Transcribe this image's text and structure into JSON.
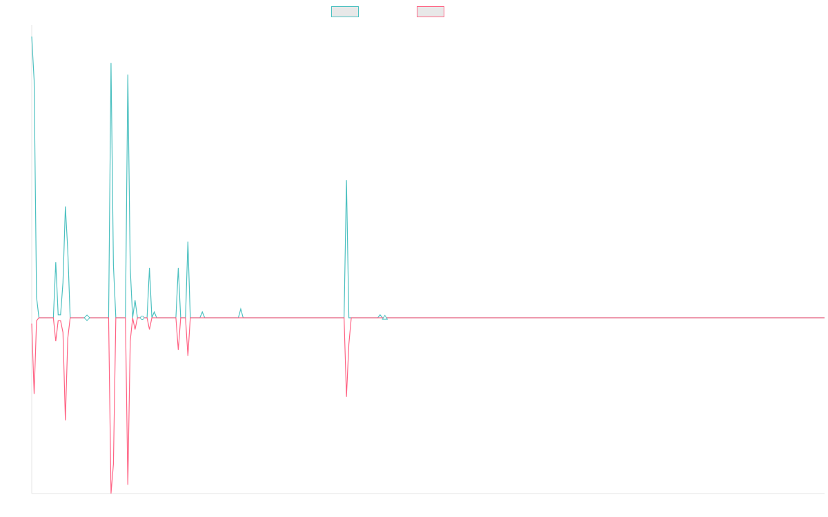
{
  "chart_data": {
    "type": "line",
    "title": "",
    "xlabel": "",
    "ylabel": "",
    "legend_position": "top-center",
    "grid": false,
    "series": [
      {
        "color": "#4bc0c0",
        "fill": "#e8e8e8",
        "values": [
          0.96,
          0.81,
          0.07,
          0,
          0,
          0,
          0,
          0,
          0,
          0,
          0.19,
          0.01,
          0.01,
          0.12,
          0.38,
          0.23,
          0,
          0,
          0,
          0,
          0,
          0,
          0,
          0,
          0,
          0,
          0,
          0,
          0,
          0,
          0,
          0,
          0,
          0.87,
          0.18,
          0,
          0,
          0,
          0,
          0,
          0.83,
          0.17,
          0,
          0.06,
          0,
          0,
          0,
          0,
          0,
          0.17,
          0,
          0.02,
          0,
          0,
          0,
          0,
          0,
          0,
          0,
          0,
          0,
          0.17,
          0,
          0,
          0,
          0.26,
          0,
          0,
          0,
          0,
          0,
          0.02,
          0,
          0,
          0,
          0,
          0,
          0,
          0,
          0,
          0,
          0,
          0,
          0,
          0,
          0,
          0,
          0.03,
          0,
          0,
          0,
          0,
          0,
          0,
          0,
          0,
          0,
          0,
          0,
          0,
          0,
          0,
          0,
          0,
          0,
          0,
          0,
          0,
          0,
          0,
          0,
          0,
          0,
          0,
          0,
          0,
          0,
          0,
          0,
          0,
          0,
          0,
          0,
          0,
          0,
          0,
          0,
          0,
          0,
          0,
          0,
          0.47,
          0,
          0,
          0,
          0,
          0,
          0,
          0,
          0,
          0,
          0,
          0,
          0,
          0,
          0.01,
          0,
          0,
          0,
          0,
          0,
          0,
          0,
          0,
          0,
          0,
          0,
          0,
          0,
          0,
          0,
          0,
          0,
          0,
          0,
          0,
          0,
          0,
          0,
          0,
          0,
          0,
          0,
          0,
          0,
          0,
          0,
          0,
          0,
          0,
          0,
          0,
          0,
          0,
          0,
          0,
          0,
          0,
          0,
          0,
          0,
          0,
          0,
          0,
          0,
          0,
          0,
          0,
          0,
          0,
          0,
          0,
          0,
          0,
          0,
          0,
          0,
          0,
          0,
          0,
          0,
          0,
          0,
          0,
          0,
          0,
          0,
          0,
          0,
          0,
          0,
          0,
          0,
          0,
          0,
          0,
          0,
          0,
          0,
          0,
          0,
          0,
          0,
          0,
          0,
          0,
          0,
          0,
          0,
          0,
          0,
          0,
          0,
          0,
          0,
          0,
          0,
          0,
          0,
          0,
          0,
          0,
          0,
          0,
          0,
          0,
          0,
          0,
          0,
          0,
          0,
          0,
          0,
          0,
          0,
          0,
          0,
          0,
          0,
          0,
          0,
          0,
          0,
          0,
          0,
          0,
          0,
          0,
          0,
          0,
          0,
          0,
          0,
          0,
          0,
          0,
          0,
          0,
          0,
          0,
          0,
          0,
          0,
          0,
          0,
          0,
          0,
          0,
          0,
          0,
          0,
          0,
          0,
          0,
          0,
          0,
          0,
          0,
          0,
          0,
          0,
          0,
          0,
          0,
          0,
          0,
          0,
          0,
          0,
          0,
          0,
          0,
          0,
          0,
          0,
          0,
          0,
          0,
          0,
          0,
          0
        ]
      },
      {
        "color": "#ff6384",
        "fill": "#e8e8e8",
        "values": [
          -0.02,
          -0.26,
          -0.01,
          0,
          0,
          0,
          0,
          0,
          0,
          0,
          -0.08,
          -0.01,
          -0.01,
          -0.05,
          -0.35,
          -0.07,
          0,
          0,
          0,
          0,
          0,
          0,
          0,
          0,
          0,
          0,
          0,
          0,
          0,
          0,
          0,
          0,
          0,
          -0.6,
          -0.5,
          0,
          0,
          0,
          0,
          0,
          -0.57,
          -0.08,
          0,
          -0.04,
          0,
          0,
          0,
          0,
          0,
          -0.04,
          0,
          0,
          0,
          0,
          0,
          0,
          0,
          0,
          0,
          0,
          0,
          -0.11,
          0,
          0,
          0,
          -0.13,
          0,
          0,
          0,
          0,
          0,
          0,
          0,
          0,
          0,
          0,
          0,
          0,
          0,
          0,
          0,
          0,
          0,
          0,
          0,
          0,
          0,
          0,
          0,
          0,
          0,
          0,
          0,
          0,
          0,
          0,
          0,
          0,
          0,
          0,
          0,
          0,
          0,
          0,
          0,
          0,
          0,
          0,
          0,
          0,
          0,
          0,
          0,
          0,
          0,
          0,
          0,
          0,
          0,
          0,
          0,
          0,
          0,
          0,
          0,
          0,
          0,
          0,
          0,
          0,
          0,
          -0.27,
          -0.09,
          0,
          0,
          0,
          0,
          0,
          0,
          0,
          0,
          0,
          0,
          0,
          0,
          0,
          0,
          0,
          0,
          0,
          0,
          0,
          0,
          0,
          0,
          0,
          0,
          0,
          0,
          0,
          0,
          0,
          0,
          0,
          0,
          0,
          0,
          0,
          0,
          0,
          0,
          0,
          0,
          0,
          0,
          0,
          0,
          0,
          0,
          0,
          0,
          0,
          0,
          0,
          0,
          0,
          0,
          0,
          0,
          0,
          0,
          0,
          0,
          0,
          0,
          0,
          0,
          0,
          0,
          0,
          0,
          0,
          0,
          0,
          0,
          0,
          0,
          0,
          0,
          0,
          0,
          0,
          0,
          0,
          0,
          0,
          0,
          0,
          0,
          0,
          0,
          0,
          0,
          0,
          0,
          0,
          0,
          0,
          0,
          0,
          0,
          0,
          0,
          0,
          0,
          0,
          0,
          0,
          0,
          0,
          0,
          0,
          0,
          0,
          0,
          0,
          0,
          0,
          0,
          0,
          0,
          0,
          0,
          0,
          0,
          0,
          0,
          0,
          0,
          0,
          0,
          0,
          0,
          0,
          0,
          0,
          0,
          0,
          0,
          0,
          0,
          0,
          0,
          0,
          0,
          0,
          0,
          0,
          0,
          0,
          0,
          0,
          0,
          0,
          0,
          0,
          0,
          0,
          0,
          0,
          0,
          0,
          0,
          0,
          0,
          0,
          0,
          0,
          0,
          0,
          0,
          0,
          0,
          0,
          0,
          0,
          0,
          0,
          0,
          0,
          0,
          0,
          0,
          0,
          0,
          0,
          0,
          0,
          0,
          0,
          0,
          0,
          0,
          0,
          0,
          0,
          0,
          0,
          0,
          0,
          0
        ]
      }
    ],
    "markers": [
      {
        "series": 0,
        "index": 23,
        "shape": "diamond"
      },
      {
        "series": 0,
        "index": 46,
        "shape": "circle"
      },
      {
        "series": 0,
        "index": 147,
        "shape": "triangle"
      }
    ],
    "ylim": [
      -0.6,
      1.0
    ]
  }
}
